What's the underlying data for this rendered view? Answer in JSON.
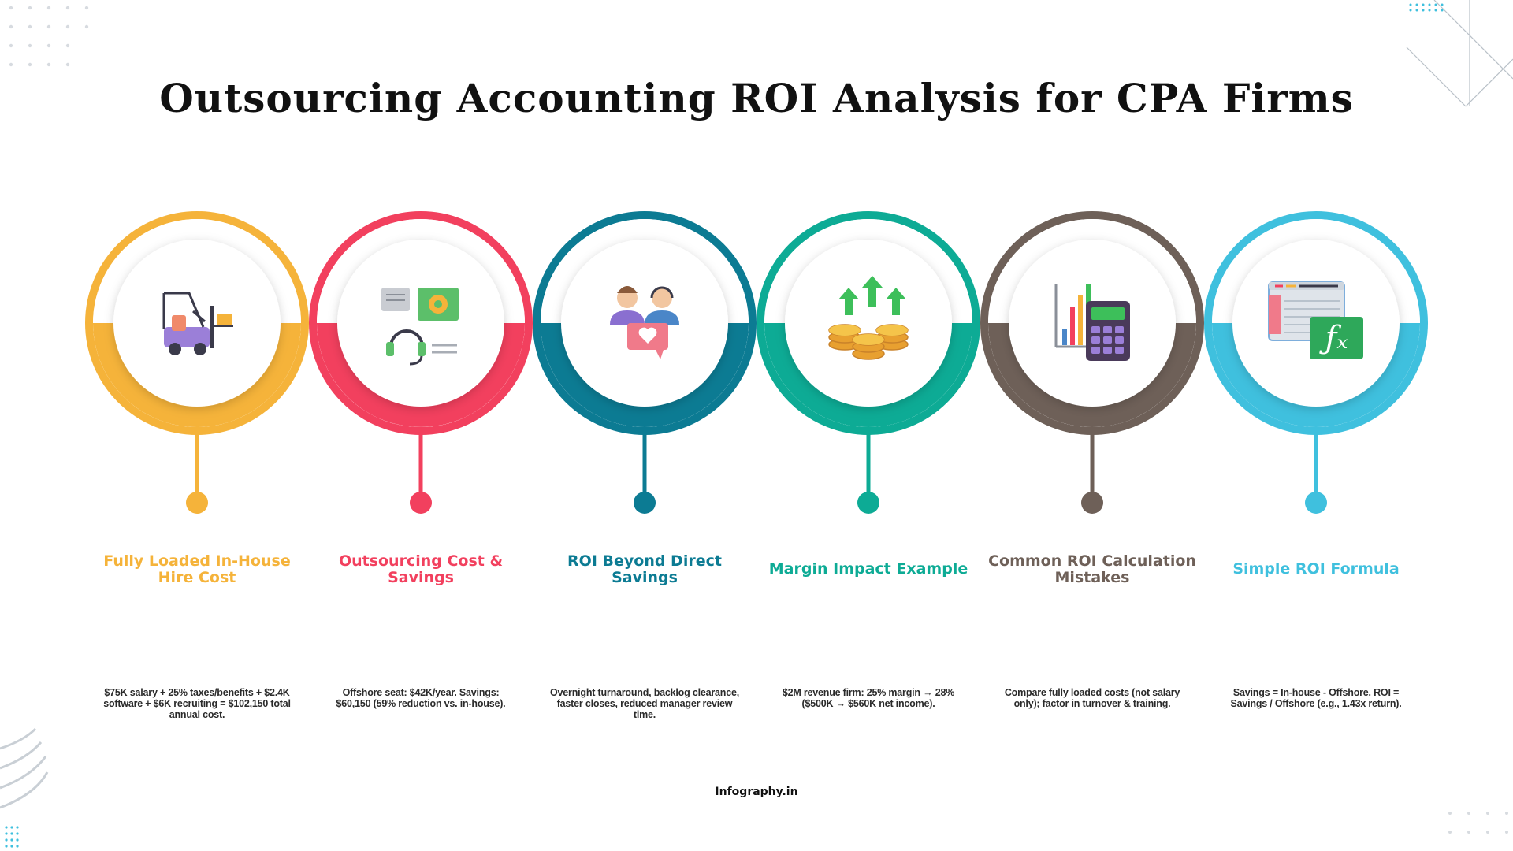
{
  "title": "Outsourcing Accounting ROI Analysis for CPA Firms",
  "footer": "Infography.in",
  "steps": [
    {
      "label": "Fully Loaded In-House Hire Cost",
      "description": "$75K salary + 25% taxes/benefits + $2.4K software + $6K recruiting = $102,150 total annual cost.",
      "color": "#F5B33A",
      "icon": "forklift-icon"
    },
    {
      "label": "Outsourcing Cost & Savings",
      "description": "Offshore seat: $42K/year. Savings: $60,150 (59% reduction vs. in-house).",
      "color": "#F2405E",
      "icon": "customer-support-icon"
    },
    {
      "label": "ROI Beyond Direct Savings",
      "description": "Overnight turnaround, backlog clearance, faster closes, reduced manager review time.",
      "color": "#0C7B93",
      "icon": "team-heart-icon"
    },
    {
      "label": "Margin Impact Example",
      "description": "$2M revenue firm: 25% margin → 28% ($500K → $560K net income).",
      "color": "#0DAB95",
      "icon": "coins-growth-icon"
    },
    {
      "label": "Common ROI Calculation Mistakes",
      "description": "Compare fully loaded costs (not salary only); factor in turnover & training.",
      "color": "#6E6058",
      "icon": "chart-calculator-icon"
    },
    {
      "label": "Simple ROI Formula",
      "description": "Savings = In-house - Offshore. ROI = Savings / Offshore (e.g., 1.43x return).",
      "color": "#3FC0DE",
      "icon": "spreadsheet-formula-icon"
    }
  ]
}
